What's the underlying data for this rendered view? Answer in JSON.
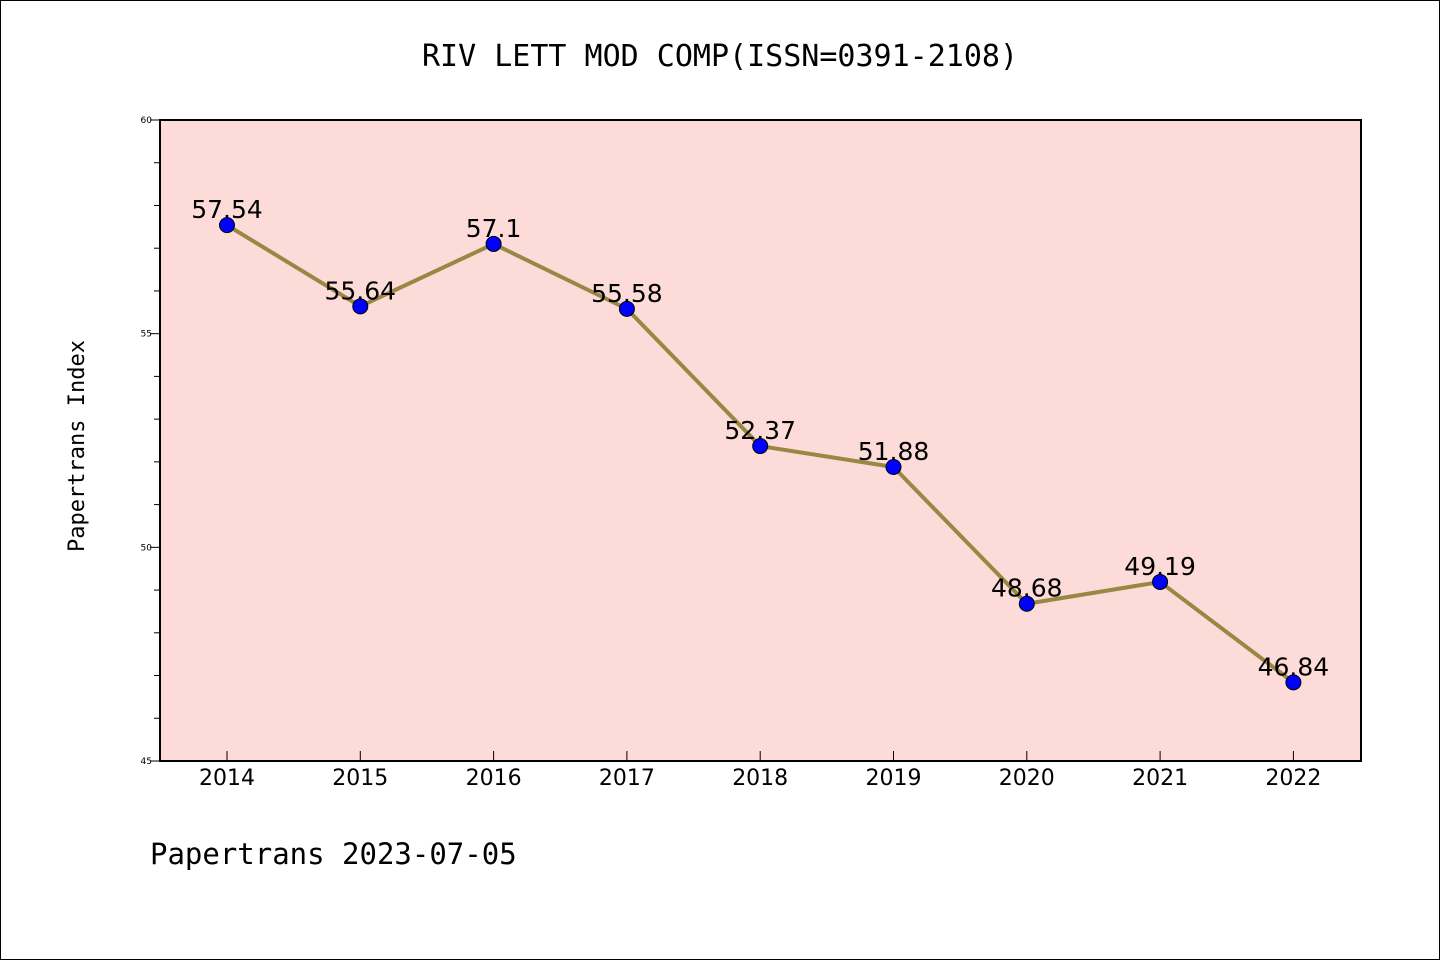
{
  "chart_data": {
    "type": "line",
    "title": "RIV LETT MOD COMP(ISSN=0391-2108)",
    "xlabel": "",
    "ylabel": "Papertrans Index",
    "categories": [
      "2014",
      "2015",
      "2016",
      "2017",
      "2018",
      "2019",
      "2020",
      "2021",
      "2022"
    ],
    "series": [
      {
        "values": [
          57.54,
          55.64,
          57.1,
          55.58,
          52.37,
          51.88,
          48.68,
          49.19,
          46.84
        ],
        "labels": [
          "57.54",
          "55.64",
          "57.1",
          "55.58",
          "52.37",
          "51.88",
          "48.68",
          "49.19",
          "46.84"
        ]
      }
    ],
    "ylim": [
      45,
      60
    ],
    "yticks": [
      "45",
      "50",
      "55",
      "60"
    ],
    "grid": false,
    "legend": "none",
    "footer": "Papertrans 2023-07-05"
  },
  "colors": {
    "plot_background": "#fddbd8",
    "line": "#998844",
    "marker": "#0000ff"
  }
}
